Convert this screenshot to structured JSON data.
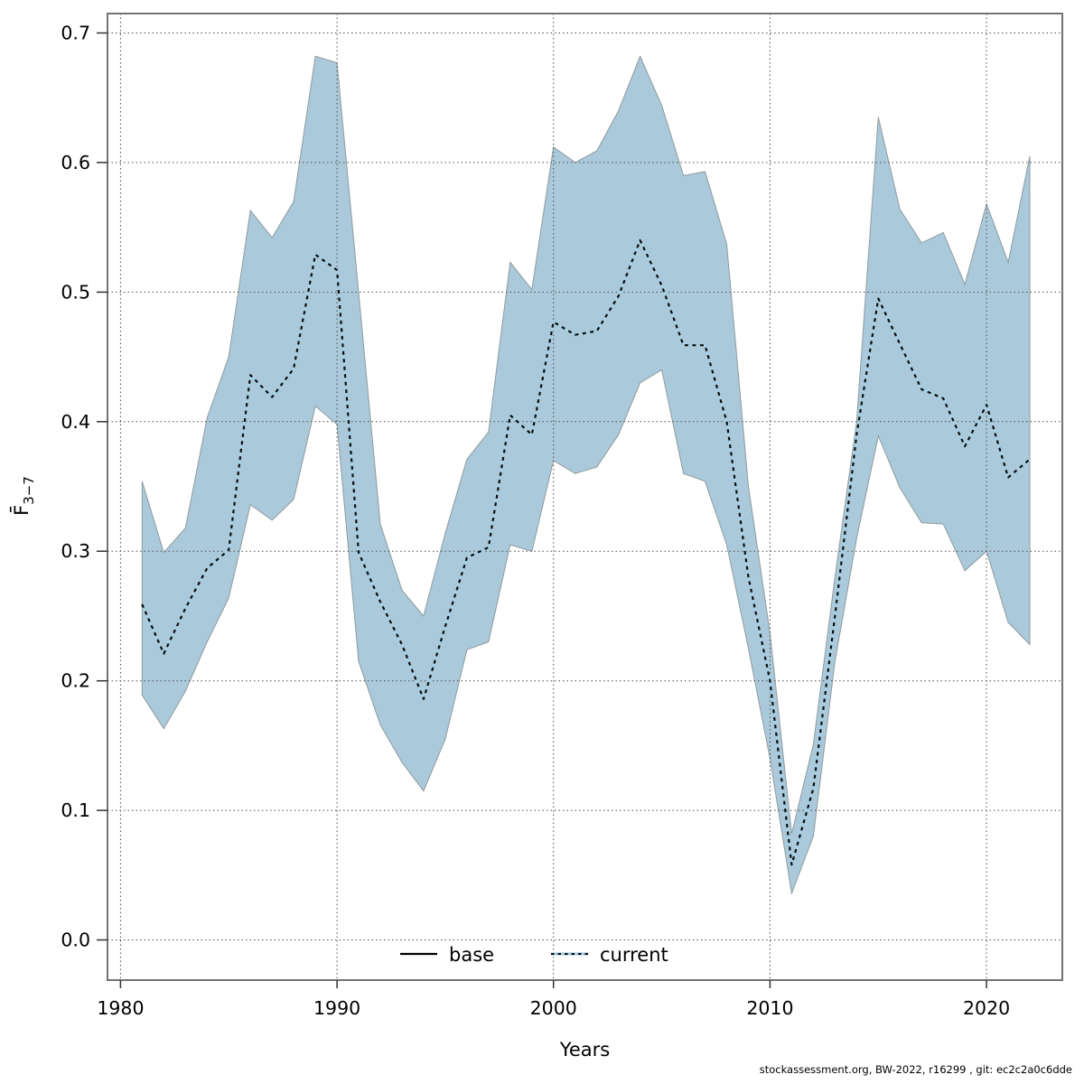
{
  "figure": {
    "footer": "stockassessment.org, BW-2022, r16299 , git: ec2c2a0c6dde",
    "background": "#ffffff"
  },
  "chart_data": {
    "type": "line",
    "title": "",
    "xlabel": "Years",
    "ylabel_main": "F̄",
    "ylabel_sub": "3−7",
    "xlim": [
      1979.4,
      2023.5
    ],
    "ylim": [
      -0.031,
      0.715
    ],
    "xticks": [
      1980,
      1990,
      2000,
      2010,
      2020
    ],
    "ytick_labels": [
      "0.0",
      "0.1",
      "0.2",
      "0.3",
      "0.4",
      "0.5",
      "0.6",
      "0.7"
    ],
    "ytick_values": [
      0.0,
      0.1,
      0.2,
      0.3,
      0.4,
      0.5,
      0.6,
      0.7
    ],
    "grid": "dotted",
    "legend": {
      "position": "bottom-center",
      "entries": [
        {
          "label": "base",
          "line": "solid",
          "color": "#000000"
        },
        {
          "label": "current",
          "line": "dotted",
          "color": "#a6cfe3"
        }
      ]
    },
    "x": [
      1981,
      1982,
      1983,
      1984,
      1985,
      1986,
      1987,
      1988,
      1989,
      1990,
      1991,
      1992,
      1993,
      1994,
      1995,
      1996,
      1997,
      1998,
      1999,
      2000,
      2001,
      2002,
      2003,
      2004,
      2005,
      2006,
      2007,
      2008,
      2009,
      2010,
      2011,
      2012,
      2013,
      2014,
      2015,
      2016,
      2017,
      2018,
      2019,
      2020,
      2021,
      2022
    ],
    "series": [
      {
        "name": "current",
        "values": [
          0.259,
          0.221,
          0.256,
          0.287,
          0.301,
          0.436,
          0.419,
          0.441,
          0.529,
          0.517,
          0.299,
          0.261,
          0.228,
          0.186,
          0.242,
          0.295,
          0.303,
          0.405,
          0.39,
          0.477,
          0.467,
          0.47,
          0.497,
          0.54,
          0.505,
          0.459,
          0.459,
          0.4,
          0.28,
          0.2,
          0.058,
          0.117,
          0.25,
          0.39,
          0.495,
          0.46,
          0.425,
          0.418,
          0.381,
          0.413,
          0.357,
          0.371
        ]
      },
      {
        "name": "current_ci_upper",
        "values": [
          0.354,
          0.299,
          0.318,
          0.403,
          0.45,
          0.563,
          0.542,
          0.57,
          0.682,
          0.677,
          0.5,
          0.321,
          0.27,
          0.25,
          0.314,
          0.371,
          0.392,
          0.523,
          0.502,
          0.612,
          0.6,
          0.609,
          0.64,
          0.682,
          0.644,
          0.59,
          0.593,
          0.537,
          0.35,
          0.237,
          0.082,
          0.151,
          0.28,
          0.4,
          0.635,
          0.564,
          0.538,
          0.546,
          0.506,
          0.568,
          0.523,
          0.605
        ]
      },
      {
        "name": "current_ci_lower",
        "values": [
          0.189,
          0.163,
          0.192,
          0.23,
          0.264,
          0.336,
          0.324,
          0.34,
          0.412,
          0.398,
          0.215,
          0.166,
          0.137,
          0.115,
          0.155,
          0.224,
          0.23,
          0.305,
          0.3,
          0.37,
          0.36,
          0.365,
          0.39,
          0.43,
          0.44,
          0.36,
          0.354,
          0.305,
          0.225,
          0.14,
          0.036,
          0.08,
          0.215,
          0.31,
          0.389,
          0.349,
          0.322,
          0.321,
          0.285,
          0.3,
          0.245,
          0.228
        ]
      }
    ],
    "colors": {
      "band_fill": "#aac9da",
      "band_edge": "#8f9b9f",
      "line_underlay": "#a6cfe3",
      "line_dash": "#0d0d0d",
      "grid": "#4d4d4d",
      "spine": "#737373",
      "tick": "#333333"
    }
  }
}
